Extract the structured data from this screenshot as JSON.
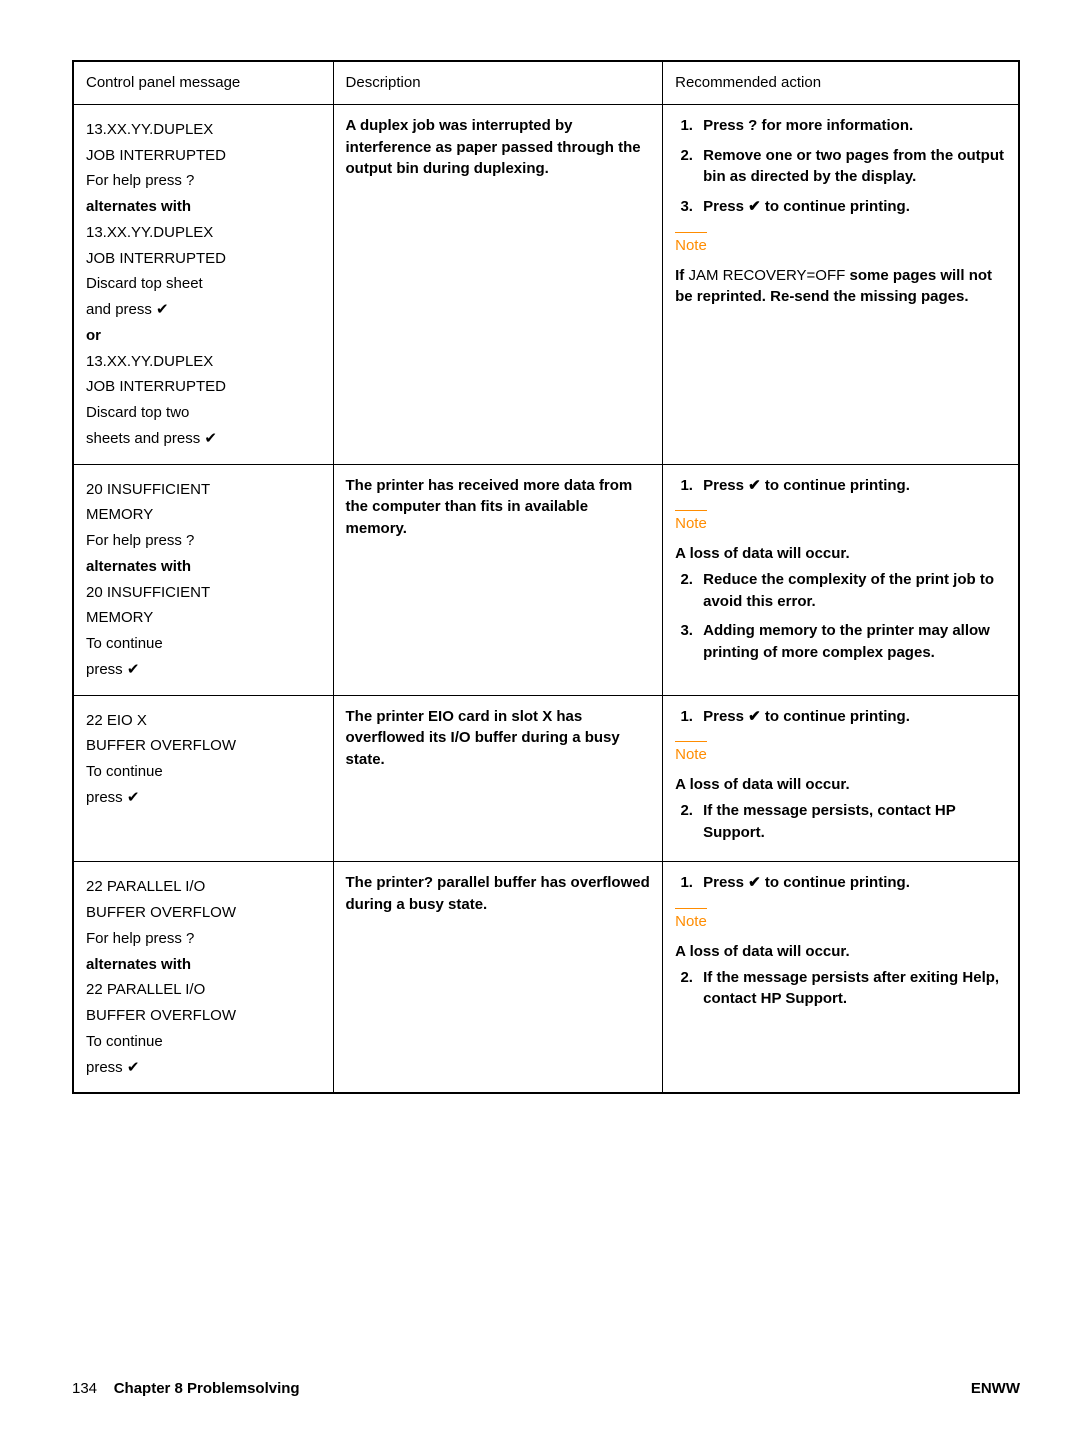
{
  "header": {
    "col1": "Control panel message",
    "col2": "Description",
    "col3": "Recommended action"
  },
  "rows": [
    {
      "cpm": {
        "type": "lines",
        "lines": [
          {
            "text": "13.XX.YY.DUPLEX"
          },
          {
            "text": "JOB INTERRUPTED"
          },
          {
            "text": "For help press  ?"
          },
          {
            "text": "alternates with",
            "bold": true
          },
          {
            "text": "13.XX.YY.DUPLEX"
          },
          {
            "text": "JOB INTERRUPTED"
          },
          {
            "text": "Discard top sheet"
          },
          {
            "text": "and press  ✔"
          },
          {
            "text": "or",
            "bold": true
          },
          {
            "text": "13.XX.YY.DUPLEX"
          },
          {
            "text": "JOB INTERRUPTED"
          },
          {
            "text": "Discard top two"
          },
          {
            "text": "sheets and press  ✔"
          }
        ]
      },
      "desc": "A duplex job was interrupted by interference as paper passed through the output bin during duplexing.",
      "act": {
        "ol": [
          "Press ? for more information.",
          "Remove one or two pages from the output bin as directed by the display.",
          "Press ✔ to continue printing."
        ],
        "note": "Note",
        "post_lines": [
          {
            "runs": [
              {
                "text": "If ",
                "bold": true
              },
              {
                "text": "JAM RECOVERY=OFF"
              },
              {
                "text": " some pages will not be reprinted. Re-send the missing pages.",
                "bold": true
              }
            ]
          }
        ]
      }
    },
    {
      "cpm": {
        "type": "lines",
        "lines": [
          {
            "text": "20 INSUFFICIENT"
          },
          {
            "text": "MEMORY"
          },
          {
            "text": "For help press  ?"
          },
          {
            "text": "alternates with",
            "bold": true
          },
          {
            "text": "20 INSUFFICIENT"
          },
          {
            "text": "MEMORY"
          },
          {
            "text": "To continue"
          },
          {
            "text": "press  ✔"
          }
        ]
      },
      "desc": "The printer has received more data from the computer than fits in available memory.",
      "act": {
        "ol": [
          "Press ✔ to continue printing."
        ],
        "note": "Note",
        "note_after": "A loss of data will occur.",
        "ol2": [
          "Reduce the complexity of the print job to avoid this error.",
          "Adding memory to the printer may allow printing of more complex pages."
        ],
        "ol2_start": 2
      }
    },
    {
      "cpm": {
        "type": "lines",
        "lines": [
          {
            "text": "22 EIO X"
          },
          {
            "text": "BUFFER OVERFLOW"
          },
          {
            "text": "To continue"
          },
          {
            "text": "press  ✔"
          }
        ]
      },
      "desc": "The printer EIO card in slot X has overflowed its I/O buffer during a busy state.",
      "act": {
        "ol": [
          "Press ✔ to continue printing."
        ],
        "note": "Note",
        "note_after": "A loss of data will occur.",
        "ol2": [
          "If the message persists, contact HP Support."
        ],
        "ol2_start": 2
      }
    },
    {
      "cpm": {
        "type": "lines",
        "lines": [
          {
            "text": "22 PARALLEL I/O"
          },
          {
            "text": "BUFFER OVERFLOW"
          },
          {
            "text": "For help press  ?"
          },
          {
            "text": "alternates with",
            "bold": true
          },
          {
            "text": "22 PARALLEL I/O"
          },
          {
            "text": "BUFFER OVERFLOW"
          },
          {
            "text": "To continue"
          },
          {
            "text": "press  ✔"
          }
        ]
      },
      "desc": "The printer? parallel buffer has overflowed during a busy state.",
      "act": {
        "ol": [
          "Press ✔ to continue printing."
        ],
        "note": "Note",
        "note_after": "A loss of data will occur.",
        "ol2": [
          "If the message persists after exiting Help, contact HP Support."
        ],
        "ol2_start": 2
      }
    }
  ],
  "footer": {
    "left_page": "134",
    "left_chapter": "Chapter 8  Problemsolving",
    "right": "ENWW"
  }
}
